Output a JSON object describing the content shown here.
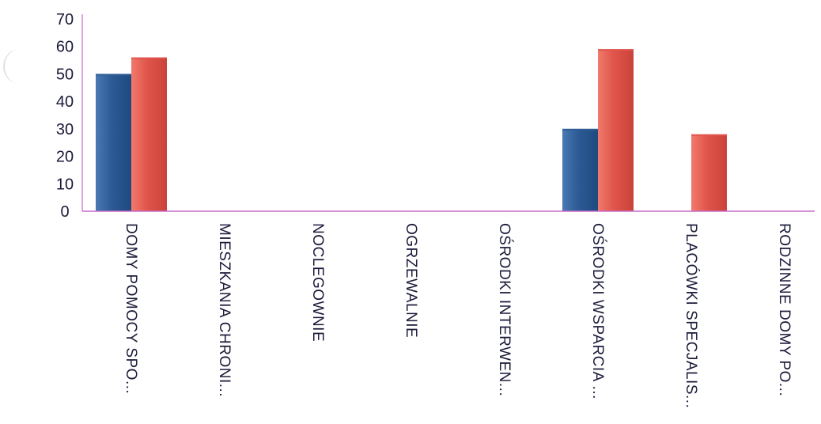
{
  "chart_data": {
    "type": "bar",
    "categories": [
      "DOMY POMOCY SPO...",
      "MIESZKANIA CHRONI...",
      "NOCLEGOWNIE",
      "OGRZEWALNIE",
      "OŚRODKI INTERWEN...",
      "OŚRODKI WSPARCIA ...",
      "PLACÓWKI SPECJALIS...",
      "RODZINNE DOMY PO..."
    ],
    "series": [
      {
        "color": "#2f5d96",
        "values": [
          50,
          0,
          0,
          0,
          0,
          30,
          0,
          0
        ]
      },
      {
        "color": "#e0544a",
        "values": [
          56,
          0,
          0,
          0,
          0,
          59,
          28,
          0
        ]
      }
    ],
    "yticks": [
      "0",
      "10",
      "20",
      "30",
      "40",
      "50",
      "60",
      "70"
    ],
    "ylim": [
      0,
      70
    ],
    "title": "",
    "xlabel": "",
    "ylabel": "",
    "grid": false,
    "legend": "none",
    "axis_color": "#c86cc8"
  }
}
